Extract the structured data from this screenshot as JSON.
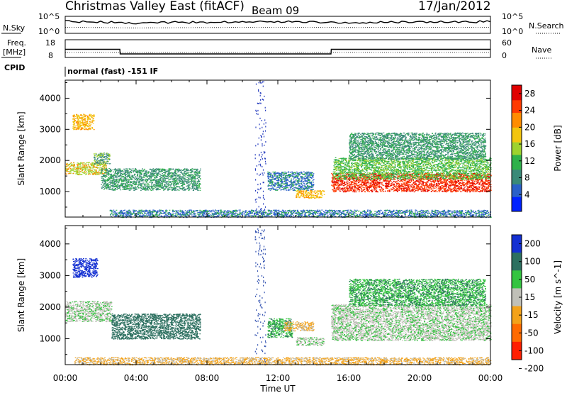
{
  "header": {
    "title": "Christmas Valley East (fitACF)",
    "beam": "Beam 09",
    "date": "17/Jan/2012"
  },
  "strip_labels": {
    "nsky": "N.Sky",
    "nsky_ticks": [
      "10^5",
      "10^0"
    ],
    "nsearch": "N.Search",
    "nsearch_ticks": [
      "10^5",
      "10^0"
    ],
    "freq": "Freq.",
    "freq_unit": "[MHz]",
    "freq_ticks": [
      "18",
      "8"
    ],
    "nave": "Nave",
    "nave_ticks": [
      "60",
      "0"
    ],
    "cpid": "CPID",
    "cpid_text": "normal (fast) -151 IF"
  },
  "chart_data": [
    {
      "type": "line",
      "title": "N.Sky / N.Search",
      "x": [
        "00:00",
        "02:00",
        "04:00",
        "06:00",
        "08:00",
        "10:00",
        "12:00",
        "14:00",
        "16:00",
        "18:00",
        "20:00",
        "22:00",
        "00:00"
      ],
      "series": [
        {
          "name": "N.Sky",
          "values": [
            3000,
            2000,
            1200,
            1500,
            1800,
            2500,
            3000,
            2000,
            1500,
            1800,
            2200,
            2500,
            2600
          ]
        },
        {
          "name": "N.Search",
          "values": [
            60,
            50,
            40,
            45,
            50,
            55,
            60,
            55,
            50,
            55,
            60,
            60,
            60
          ]
        }
      ]
    },
    {
      "type": "line",
      "title": "Freq. / Nave",
      "x": [
        "00:00",
        "03:05",
        "03:06",
        "15:00",
        "15:01",
        "24:00"
      ],
      "series": [
        {
          "name": "Freq.",
          "values": [
            12.6,
            12.6,
            10.0,
            10.0,
            12.6,
            12.6
          ]
        },
        {
          "name": "Nave",
          "values": [
            17,
            17,
            17,
            17,
            17,
            17
          ]
        }
      ]
    },
    {
      "type": "heatmap",
      "title": "Power",
      "ylabel": "Slant Range [km]",
      "xlabel": "",
      "x_range_hours": [
        0,
        24
      ],
      "ylim": [
        180,
        4580
      ],
      "xticks": [
        "00:00",
        "04:00",
        "08:00",
        "12:00",
        "16:00",
        "20:00",
        "00:00"
      ],
      "yticks": [
        1000,
        2000,
        3000,
        4000
      ],
      "colorbar": {
        "label": "Power [dB]",
        "ticks": [
          4,
          8,
          12,
          16,
          20,
          24,
          28
        ],
        "range": [
          0,
          30
        ]
      },
      "regions": [
        {
          "t0": 0.0,
          "t1": 2.3,
          "r0": 1550,
          "r1": 1950,
          "value": 17
        },
        {
          "t0": 0.4,
          "t1": 1.6,
          "r0": 3000,
          "r1": 3500,
          "value": 16
        },
        {
          "t0": 1.6,
          "t1": 2.5,
          "r0": 1900,
          "r1": 2250,
          "value": 10
        },
        {
          "t0": 2.0,
          "t1": 7.6,
          "r0": 1050,
          "r1": 1750,
          "value": 7
        },
        {
          "t0": 11.4,
          "t1": 14.0,
          "r0": 1050,
          "r1": 1650,
          "value": 8
        },
        {
          "t0": 13.0,
          "t1": 14.6,
          "r0": 800,
          "r1": 1050,
          "value": 16
        },
        {
          "t0": 15.0,
          "t1": 24.0,
          "r0": 1000,
          "r1": 1600,
          "value": 26
        },
        {
          "t0": 15.1,
          "t1": 24.0,
          "r0": 1400,
          "r1": 2100,
          "value": 12
        },
        {
          "t0": 16.0,
          "t1": 23.7,
          "r0": 2050,
          "r1": 2900,
          "value": 6
        },
        {
          "t0": 2.5,
          "t1": 24.0,
          "r0": 180,
          "r1": 420,
          "value": 6
        }
      ]
    },
    {
      "type": "heatmap",
      "title": "Velocity",
      "ylabel": "Slant Range [km]",
      "xlabel": "Time UT",
      "x_range_hours": [
        0,
        24
      ],
      "ylim": [
        180,
        4580
      ],
      "xticks": [
        "00:00",
        "04:00",
        "08:00",
        "12:00",
        "16:00",
        "20:00",
        "00:00"
      ],
      "yticks": [
        1000,
        2000,
        3000,
        4000
      ],
      "colorbar": {
        "label": "Velocity [m s^-1]",
        "ticks": [
          200,
          100,
          50,
          15,
          -15,
          -50,
          -100,
          -200
        ],
        "range": [
          -250,
          250
        ]
      },
      "regions": [
        {
          "t0": 0.0,
          "t1": 2.6,
          "r0": 1550,
          "r1": 2200,
          "value": 0
        },
        {
          "t0": 0.4,
          "t1": 1.8,
          "r0": 2950,
          "r1": 3550,
          "value": 220
        },
        {
          "t0": 2.6,
          "t1": 7.6,
          "r0": 1000,
          "r1": 1800,
          "value": 80
        },
        {
          "t0": 11.4,
          "t1": 12.8,
          "r0": 1050,
          "r1": 1650,
          "value": 35
        },
        {
          "t0": 12.3,
          "t1": 14.0,
          "r0": 1250,
          "r1": 1550,
          "value": -60
        },
        {
          "t0": 13.0,
          "t1": 14.6,
          "r0": 800,
          "r1": 1050,
          "value": -5
        },
        {
          "t0": 15.0,
          "t1": 24.0,
          "r0": 950,
          "r1": 2100,
          "value": 0
        },
        {
          "t0": 16.0,
          "t1": 23.7,
          "r0": 2050,
          "r1": 2900,
          "value": 40
        },
        {
          "t0": 0.5,
          "t1": 24.0,
          "r0": 180,
          "r1": 420,
          "value": -40
        }
      ]
    }
  ],
  "colors": {
    "power_scale": [
      "#0022ff",
      "#2a60c8",
      "#3a8a78",
      "#2fb14a",
      "#9ed22e",
      "#f2c50f",
      "#ff8c00",
      "#ff3a00",
      "#e00000"
    ],
    "velocity": {
      "pos_200": "#1430d2",
      "pos_100": "#2d7060",
      "pos_50": "#34c440",
      "zero": "#c0c0b8",
      "neg_50": "#f3a21a",
      "neg_100": "#ff6a00",
      "neg_200": "#ff1e00"
    }
  }
}
